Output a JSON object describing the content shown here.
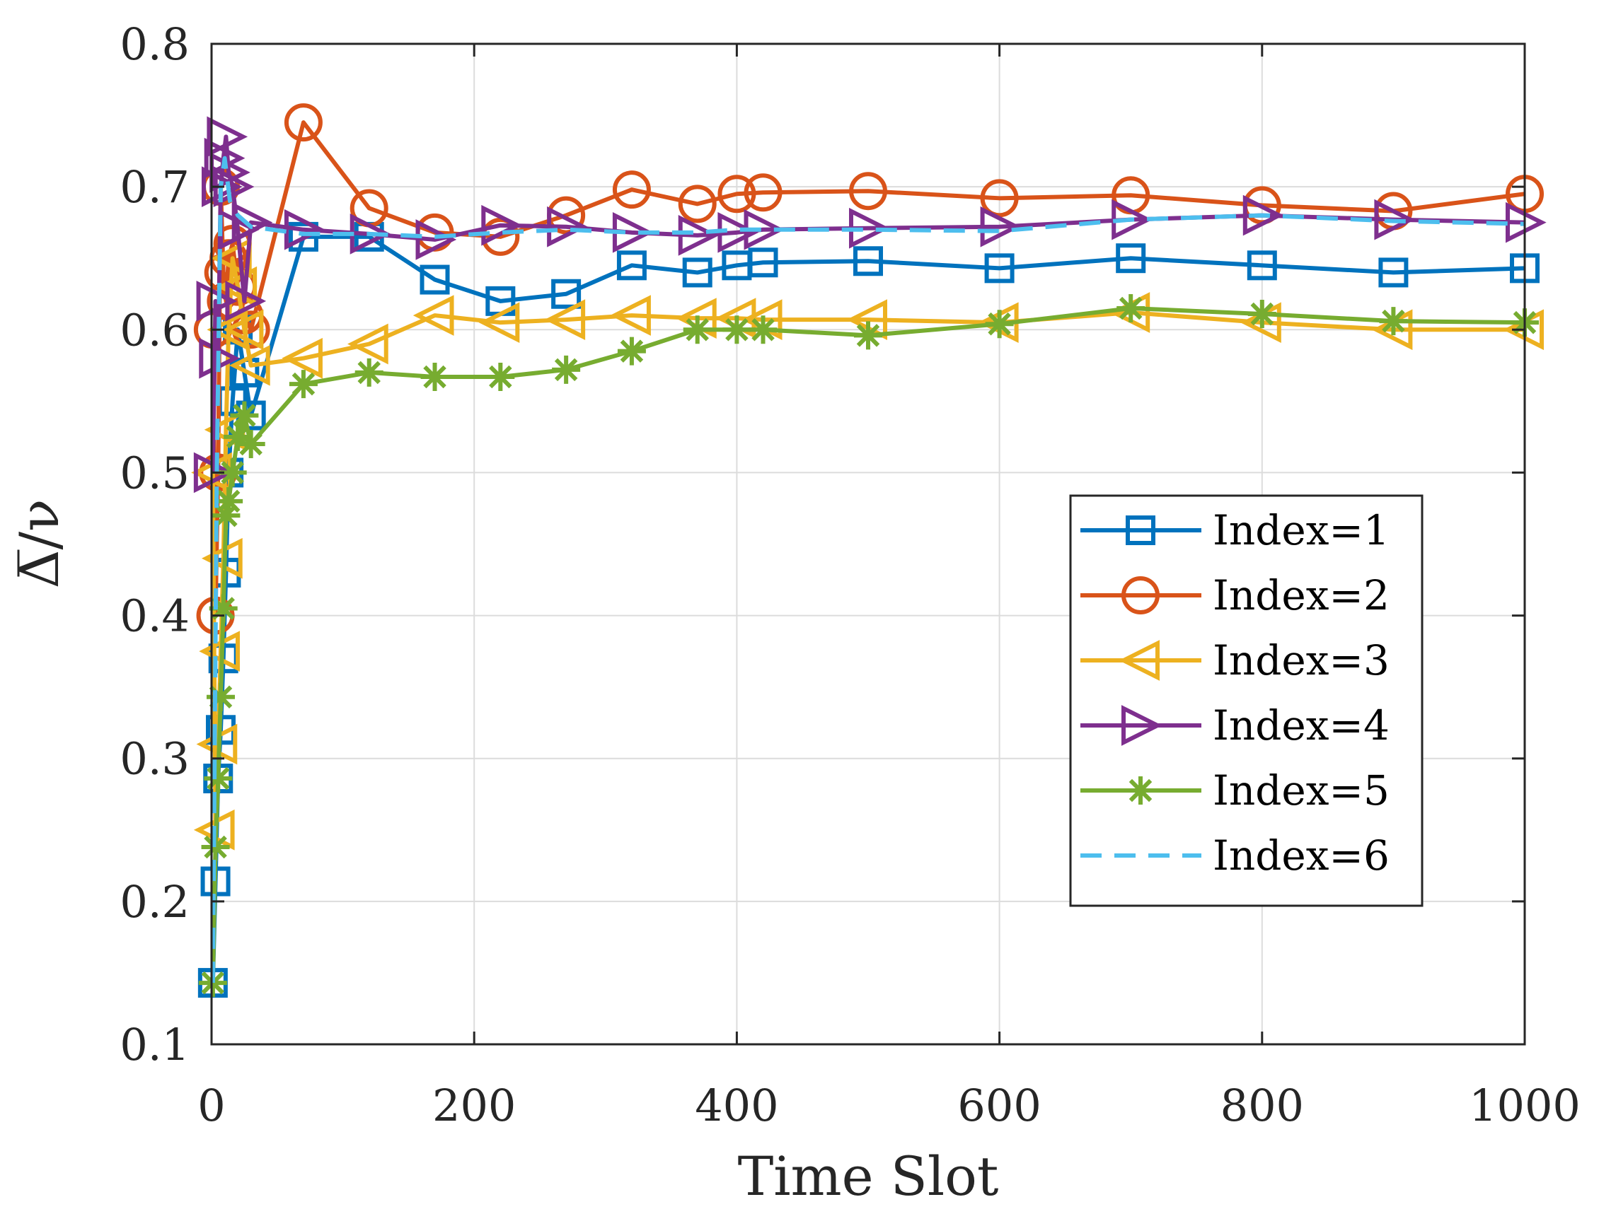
{
  "chart_data": {
    "type": "line",
    "title": "",
    "xlabel": "Time Slot",
    "ylabel": "Δ̅/ν",
    "xlim": [
      0,
      1000
    ],
    "ylim": [
      0.1,
      0.8
    ],
    "xticks": [
      0,
      200,
      400,
      600,
      800,
      1000
    ],
    "yticks": [
      0.1,
      0.2,
      0.3,
      0.4,
      0.5,
      0.6,
      0.7,
      0.8
    ],
    "xtick_labels": [
      "0",
      "200",
      "400",
      "600",
      "800",
      "1000"
    ],
    "ytick_labels": [
      "0.1",
      "0.2",
      "0.3",
      "0.4",
      "0.5",
      "0.6",
      "0.7",
      "0.8"
    ],
    "grid": true,
    "legend_position": "right-center",
    "series": [
      {
        "name": "Index=1",
        "color": "#0072BD",
        "marker": "square",
        "dash": "solid",
        "x": [
          1,
          3,
          5,
          7,
          9,
          11,
          13,
          16,
          20,
          25,
          30,
          70,
          120,
          170,
          220,
          270,
          320,
          370,
          400,
          420,
          500,
          600,
          700,
          800,
          900,
          1000
        ],
        "y": [
          0.143,
          0.214,
          0.286,
          0.32,
          0.37,
          0.43,
          0.5,
          0.55,
          0.6,
          0.57,
          0.54,
          0.665,
          0.665,
          0.635,
          0.62,
          0.625,
          0.645,
          0.64,
          0.645,
          0.647,
          0.648,
          0.643,
          0.65,
          0.645,
          0.64,
          0.643
        ]
      },
      {
        "name": "Index=2",
        "color": "#D95319",
        "marker": "circle",
        "dash": "solid",
        "x": [
          1,
          3,
          5,
          7,
          9,
          11,
          13,
          16,
          20,
          25,
          30,
          70,
          120,
          170,
          220,
          270,
          320,
          370,
          400,
          420,
          500,
          600,
          700,
          800,
          900,
          1000
        ],
        "y": [
          0.6,
          0.4,
          0.5,
          0.7,
          0.64,
          0.62,
          0.65,
          0.66,
          0.63,
          0.61,
          0.6,
          0.745,
          0.685,
          0.668,
          0.665,
          0.68,
          0.698,
          0.688,
          0.695,
          0.696,
          0.697,
          0.692,
          0.694,
          0.687,
          0.683,
          0.695
        ]
      },
      {
        "name": "Index=3",
        "color": "#EDB120",
        "marker": "triangle-left",
        "dash": "solid",
        "x": [
          1,
          3,
          5,
          7,
          9,
          11,
          13,
          16,
          20,
          25,
          30,
          70,
          120,
          170,
          220,
          270,
          320,
          370,
          400,
          420,
          500,
          600,
          700,
          800,
          900,
          1000
        ],
        "y": [
          0.5,
          0.25,
          0.31,
          0.375,
          0.44,
          0.53,
          0.6,
          0.65,
          0.63,
          0.6,
          0.575,
          0.58,
          0.59,
          0.61,
          0.605,
          0.607,
          0.61,
          0.608,
          0.608,
          0.607,
          0.607,
          0.605,
          0.612,
          0.605,
          0.6,
          0.6
        ]
      },
      {
        "name": "Index=4",
        "color": "#7E2F8E",
        "marker": "triangle-right",
        "dash": "solid",
        "x": [
          1,
          3,
          5,
          7,
          9,
          11,
          13,
          16,
          20,
          25,
          30,
          70,
          120,
          170,
          220,
          270,
          320,
          370,
          400,
          420,
          500,
          600,
          700,
          800,
          900,
          1000
        ],
        "y": [
          0.5,
          0.62,
          0.58,
          0.7,
          0.72,
          0.735,
          0.71,
          0.7,
          0.67,
          0.62,
          0.675,
          0.67,
          0.667,
          0.663,
          0.673,
          0.672,
          0.668,
          0.666,
          0.668,
          0.67,
          0.671,
          0.672,
          0.677,
          0.68,
          0.677,
          0.675
        ]
      },
      {
        "name": "Index=5",
        "color": "#77AC30",
        "marker": "asterisk",
        "dash": "solid",
        "x": [
          1,
          3,
          5,
          7,
          9,
          11,
          13,
          16,
          20,
          25,
          30,
          70,
          120,
          170,
          220,
          270,
          320,
          370,
          400,
          420,
          500,
          600,
          700,
          800,
          900,
          1000
        ],
        "y": [
          0.143,
          0.238,
          0.286,
          0.343,
          0.405,
          0.47,
          0.48,
          0.5,
          0.525,
          0.54,
          0.52,
          0.562,
          0.57,
          0.567,
          0.567,
          0.572,
          0.585,
          0.6,
          0.6,
          0.6,
          0.596,
          0.604,
          0.615,
          0.611,
          0.606,
          0.605
        ]
      },
      {
        "name": "Index=6",
        "color": "#4DBEEE",
        "marker": "none",
        "dash": "dashed",
        "x": [
          1,
          4,
          7,
          10,
          14,
          20,
          30,
          70,
          120,
          170,
          220,
          270,
          320,
          370,
          400,
          500,
          600,
          700,
          800,
          900,
          1000
        ],
        "y": [
          0.143,
          0.5,
          0.7,
          0.72,
          0.69,
          0.68,
          0.672,
          0.667,
          0.667,
          0.665,
          0.668,
          0.67,
          0.668,
          0.668,
          0.67,
          0.67,
          0.669,
          0.677,
          0.68,
          0.676,
          0.674
        ]
      }
    ]
  }
}
